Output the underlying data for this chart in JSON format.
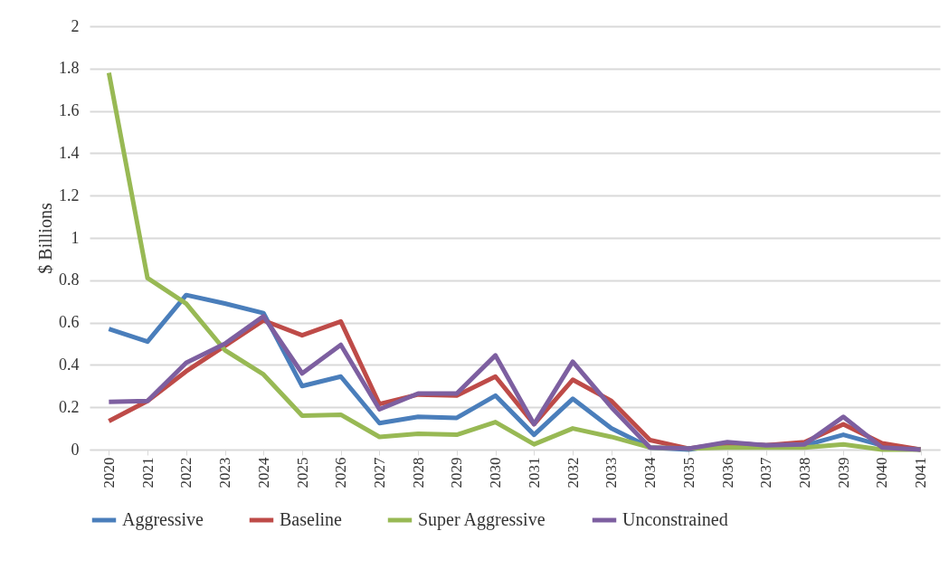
{
  "chart_data": {
    "type": "line",
    "ylabel": "$ Billions",
    "categories": [
      "2020",
      "2021",
      "2022",
      "2023",
      "2024",
      "2025",
      "2026",
      "2027",
      "2028",
      "2029",
      "2030",
      "2031",
      "2032",
      "2033",
      "2034",
      "2035",
      "2036",
      "2037",
      "2038",
      "2039",
      "2040",
      "2041"
    ],
    "series": [
      {
        "name": "Aggressive",
        "color": "#4a7ebb",
        "values": [
          0.57,
          0.51,
          0.73,
          0.69,
          0.645,
          0.3,
          0.345,
          0.125,
          0.155,
          0.15,
          0.255,
          0.07,
          0.24,
          0.1,
          0.01,
          0,
          0.03,
          0.02,
          0.02,
          0.07,
          0.02,
          0
        ]
      },
      {
        "name": "Baseline",
        "color": "#be4b48",
        "values": [
          0.135,
          0.23,
          0.37,
          0.49,
          0.61,
          0.54,
          0.605,
          0.215,
          0.26,
          0.255,
          0.345,
          0.12,
          0.33,
          0.23,
          0.045,
          0.005,
          0.03,
          0.02,
          0.035,
          0.12,
          0.03,
          0
        ]
      },
      {
        "name": "Super Aggressive",
        "color": "#98b954",
        "values": [
          1.78,
          0.81,
          0.69,
          0.47,
          0.355,
          0.16,
          0.165,
          0.06,
          0.075,
          0.07,
          0.13,
          0.025,
          0.1,
          0.06,
          0.01,
          0.005,
          0.01,
          0.01,
          0.01,
          0.025,
          0,
          0
        ]
      },
      {
        "name": "Unconstrained",
        "color": "#7d5fa0",
        "values": [
          0.225,
          0.23,
          0.41,
          0.5,
          0.63,
          0.36,
          0.495,
          0.19,
          0.265,
          0.265,
          0.445,
          0.12,
          0.415,
          0.2,
          0.01,
          0.005,
          0.035,
          0.02,
          0.025,
          0.155,
          0.01,
          0
        ]
      }
    ],
    "ylim": [
      0,
      2
    ],
    "yticks": [
      0,
      0.2,
      0.4,
      0.6,
      0.8,
      1,
      1.2,
      1.4,
      1.6,
      1.8,
      2
    ],
    "grid": "y",
    "legend": "bottom",
    "line_style": "solid",
    "marker": "none"
  }
}
